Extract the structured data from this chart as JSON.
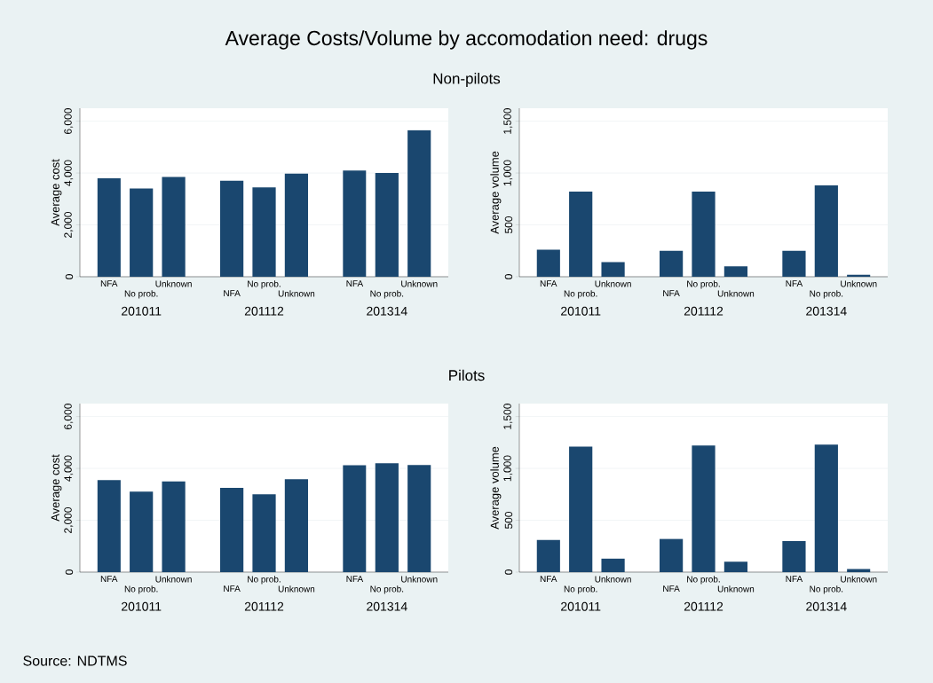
{
  "chart_data": [
    {
      "type": "bar",
      "title": "Average Costs/Volume by accomodation need: drugs",
      "subtitle": "Non-pilots",
      "ylabel": "Average cost",
      "grid": "y",
      "categories": [
        "201011",
        "201112",
        "201314"
      ],
      "series": [
        {
          "name": "NFA",
          "color": "#1a476f",
          "values": [
            3800,
            3700,
            4100
          ]
        },
        {
          "name": "No prob.",
          "color": "#1a476f",
          "values": [
            3400,
            3450,
            4000
          ]
        },
        {
          "name": "Unknown",
          "color": "#1a476f",
          "values": [
            3850,
            3980,
            5650
          ]
        }
      ],
      "ylim": [
        0,
        6500
      ],
      "yticks": [
        0,
        {
          "value": 2000,
          "label": "2,000"
        },
        {
          "value": 4000,
          "label": "4,000"
        },
        {
          "value": 6000,
          "label": "6,000"
        }
      ]
    },
    {
      "type": "bar",
      "ylabel": "Average volume",
      "grid": "y",
      "categories": [
        "201011",
        "201112",
        "201314"
      ],
      "series": [
        {
          "name": "NFA",
          "color": "#1a476f",
          "values": [
            260,
            250,
            250
          ]
        },
        {
          "name": "No prob.",
          "color": "#1a476f",
          "values": [
            820,
            820,
            880
          ]
        },
        {
          "name": "Unknown",
          "color": "#1a476f",
          "values": [
            140,
            100,
            20
          ]
        }
      ],
      "ylim": [
        0,
        1625
      ],
      "yticks": [
        0,
        500,
        {
          "value": 1000,
          "label": "1,000"
        },
        {
          "value": 1500,
          "label": "1,500"
        }
      ]
    },
    {
      "type": "bar",
      "subtitle": "Pilots",
      "ylabel": "Average cost",
      "grid": "y",
      "categories": [
        "201011",
        "201112",
        "201314"
      ],
      "series": [
        {
          "name": "NFA",
          "color": "#1a476f",
          "values": [
            3550,
            3250,
            4120
          ]
        },
        {
          "name": "No prob.",
          "color": "#1a476f",
          "values": [
            3100,
            3000,
            4200
          ]
        },
        {
          "name": "Unknown",
          "color": "#1a476f",
          "values": [
            3500,
            3580,
            4130
          ]
        }
      ],
      "ylim": [
        0,
        6500
      ],
      "yticks": [
        0,
        {
          "value": 2000,
          "label": "2,000"
        },
        {
          "value": 4000,
          "label": "4,000"
        },
        {
          "value": 6000,
          "label": "6,000"
        }
      ],
      "annotations": [
        "Source:  NDTMS"
      ]
    },
    {
      "type": "bar",
      "ylabel": "Average volume",
      "grid": "y",
      "categories": [
        "201011",
        "201112",
        "201314"
      ],
      "series": [
        {
          "name": "NFA",
          "color": "#1a476f",
          "values": [
            310,
            320,
            300
          ]
        },
        {
          "name": "No prob.",
          "color": "#1a476f",
          "values": [
            1210,
            1220,
            1230
          ]
        },
        {
          "name": "Unknown",
          "color": "#1a476f",
          "values": [
            130,
            100,
            30
          ]
        }
      ],
      "ylim": [
        0,
        1625
      ],
      "yticks": [
        0,
        500,
        {
          "value": 1000,
          "label": "1,000"
        },
        {
          "value": 1500,
          "label": "1,500"
        }
      ]
    }
  ]
}
